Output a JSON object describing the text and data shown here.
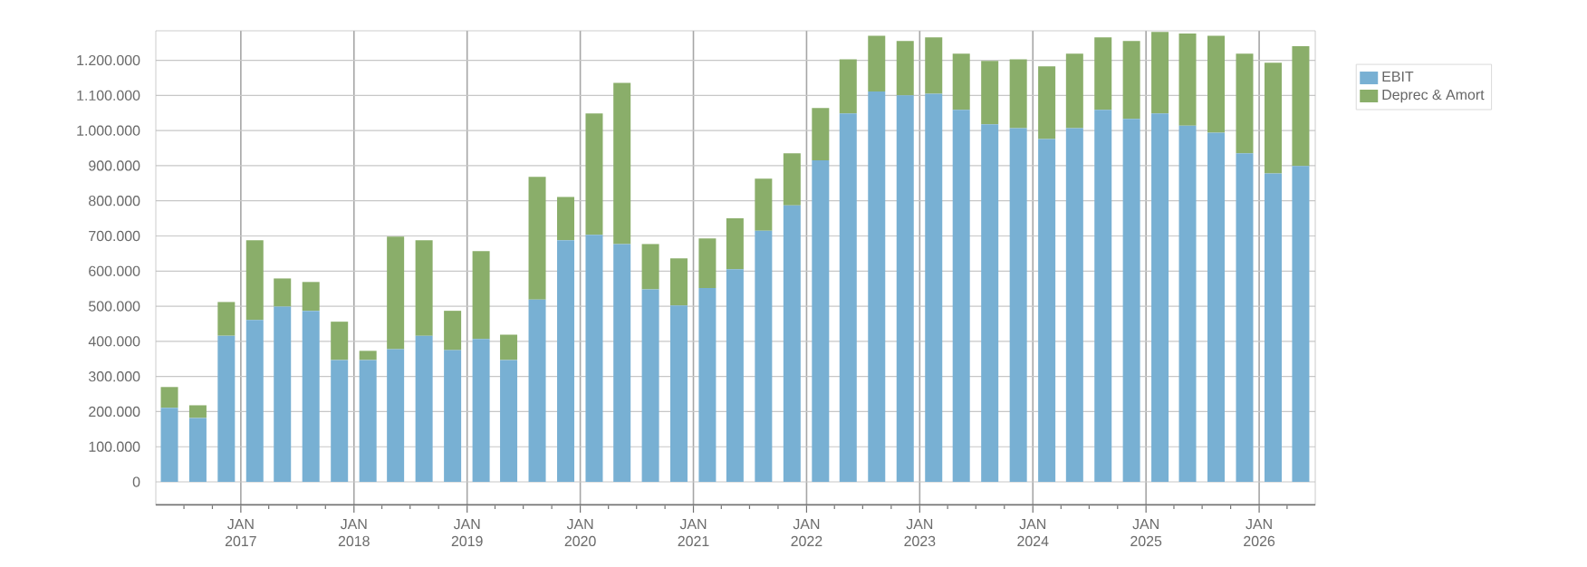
{
  "chart_data": {
    "type": "bar",
    "stacked": true,
    "x": [
      "2016-05-15",
      "2016-08-15",
      "2016-11-15",
      "2017-02-15",
      "2017-05-15",
      "2017-08-15",
      "2017-11-15",
      "2018-02-15",
      "2018-05-15",
      "2018-08-15",
      "2018-11-15",
      "2019-02-15",
      "2019-05-15",
      "2019-08-15",
      "2019-11-15",
      "2020-02-15",
      "2020-05-15",
      "2020-08-15",
      "2020-11-15",
      "2021-02-15",
      "2021-05-15",
      "2021-08-15",
      "2021-11-15",
      "2022-02-15",
      "2022-05-15",
      "2022-08-15",
      "2022-11-15",
      "2023-02-15",
      "2023-05-15",
      "2023-08-15",
      "2023-11-15",
      "2024-02-15",
      "2024-05-15",
      "2024-08-15",
      "2024-11-15",
      "2025-02-15",
      "2025-05-15",
      "2025-08-15",
      "2025-11-15",
      "2026-02-15",
      "2026-05-15"
    ],
    "series": [
      {
        "name": "EBIT",
        "color": "#78b0d3",
        "values": [
          211000,
          182000,
          416000,
          461000,
          499000,
          487000,
          347000,
          347000,
          378000,
          416000,
          375000,
          407000,
          347000,
          519000,
          688000,
          703000,
          677000,
          548000,
          502000,
          552000,
          605000,
          715000,
          787000,
          915000,
          1049000,
          1111000,
          1100000,
          1105000,
          1059000,
          1018000,
          1007000,
          976000,
          1007000,
          1059000,
          1033000,
          1049000,
          1014000,
          994000,
          935000,
          878000,
          899000
        ]
      },
      {
        "name": "Deprec & Amort",
        "color": "#8aae6a",
        "values": [
          59000,
          36000,
          96000,
          227000,
          80000,
          82000,
          109000,
          26000,
          320000,
          272000,
          112000,
          250000,
          72000,
          349000,
          123000,
          346000,
          459000,
          129000,
          134000,
          141000,
          145000,
          148000,
          148000,
          149000,
          154000,
          159000,
          155000,
          160000,
          160000,
          180000,
          196000,
          207000,
          212000,
          206000,
          222000,
          232000,
          262000,
          276000,
          284000,
          315000,
          341000
        ]
      }
    ],
    "xlim": [
      "2016-04-01",
      "2026-07-01"
    ],
    "xticks": [
      {
        "value": "2016-07-01",
        "label": null
      },
      {
        "value": "2016-10-01",
        "label": null
      },
      {
        "value": "2017-01-01",
        "label": "JAN 2017"
      },
      {
        "value": "2017-04-01",
        "label": null
      },
      {
        "value": "2017-07-01",
        "label": null
      },
      {
        "value": "2017-10-01",
        "label": null
      },
      {
        "value": "2018-01-01",
        "label": "JAN 2018"
      },
      {
        "value": "2018-04-01",
        "label": null
      },
      {
        "value": "2018-07-01",
        "label": null
      },
      {
        "value": "2018-10-01",
        "label": null
      },
      {
        "value": "2019-01-01",
        "label": "JAN 2019"
      },
      {
        "value": "2019-04-01",
        "label": null
      },
      {
        "value": "2019-07-01",
        "label": null
      },
      {
        "value": "2019-10-01",
        "label": null
      },
      {
        "value": "2020-01-01",
        "label": "JAN 2020"
      },
      {
        "value": "2020-04-01",
        "label": null
      },
      {
        "value": "2020-07-01",
        "label": null
      },
      {
        "value": "2020-10-01",
        "label": null
      },
      {
        "value": "2021-01-01",
        "label": "JAN 2021"
      },
      {
        "value": "2021-04-01",
        "label": null
      },
      {
        "value": "2021-07-01",
        "label": null
      },
      {
        "value": "2021-10-01",
        "label": null
      },
      {
        "value": "2022-01-01",
        "label": "JAN 2022"
      },
      {
        "value": "2022-04-01",
        "label": null
      },
      {
        "value": "2022-07-01",
        "label": null
      },
      {
        "value": "2022-10-01",
        "label": null
      },
      {
        "value": "2023-01-01",
        "label": "JAN 2023"
      },
      {
        "value": "2023-04-01",
        "label": null
      },
      {
        "value": "2023-07-01",
        "label": null
      },
      {
        "value": "2023-10-01",
        "label": null
      },
      {
        "value": "2024-01-01",
        "label": "JAN 2024"
      },
      {
        "value": "2024-04-01",
        "label": null
      },
      {
        "value": "2024-07-01",
        "label": null
      },
      {
        "value": "2024-10-01",
        "label": null
      },
      {
        "value": "2025-01-01",
        "label": "JAN 2025"
      },
      {
        "value": "2025-04-01",
        "label": null
      },
      {
        "value": "2025-07-01",
        "label": null
      },
      {
        "value": "2025-10-01",
        "label": null
      },
      {
        "value": "2026-01-01",
        "label": "JAN 2026"
      },
      {
        "value": "2026-04-01",
        "label": null
      }
    ],
    "ylim": [
      -67000,
      1284000
    ],
    "yticks": [
      {
        "value": 0,
        "label": "0"
      },
      {
        "value": 100000,
        "label": "100.000"
      },
      {
        "value": 200000,
        "label": "200.000"
      },
      {
        "value": 300000,
        "label": "300.000"
      },
      {
        "value": 400000,
        "label": "400.000"
      },
      {
        "value": 500000,
        "label": "500.000"
      },
      {
        "value": 600000,
        "label": "600.000"
      },
      {
        "value": 700000,
        "label": "700.000"
      },
      {
        "value": 800000,
        "label": "800.000"
      },
      {
        "value": 900000,
        "label": "900.000"
      },
      {
        "value": 1000000,
        "label": "1.000.000"
      },
      {
        "value": 1100000,
        "label": "1.100.000"
      },
      {
        "value": 1200000,
        "label": "1.200.000"
      }
    ],
    "grid": true,
    "legend": "top right"
  }
}
